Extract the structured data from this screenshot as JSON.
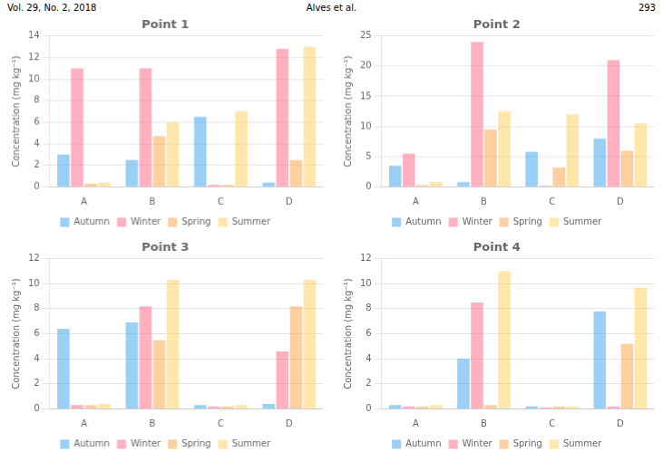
{
  "annotations": [
    "Vol. 29, No. 2, 2018",
    "Alves et al.",
    "293"
  ],
  "chart_data": [
    {
      "type": "bar",
      "title": "Point 1",
      "ylabel": "Concentration (mg kg⁻¹)",
      "categories": [
        "A",
        "B",
        "C",
        "D"
      ],
      "series": [
        {
          "name": "Autumn",
          "values": [
            3.0,
            2.5,
            6.5,
            0.4
          ]
        },
        {
          "name": "Winter",
          "values": [
            11.0,
            11.0,
            0.2,
            12.8
          ]
        },
        {
          "name": "Spring",
          "values": [
            0.3,
            4.7,
            0.2,
            2.5
          ]
        },
        {
          "name": "Summer",
          "values": [
            0.4,
            6.0,
            7.0,
            13.0
          ]
        }
      ],
      "ylim": [
        0,
        14
      ],
      "yticks": [
        0,
        2,
        4,
        6,
        8,
        10,
        12,
        14
      ],
      "grid": true,
      "legend": "bottom"
    },
    {
      "type": "bar",
      "title": "Point 2",
      "ylabel": "Concentration (mg kg⁻¹)",
      "categories": [
        "A",
        "B",
        "C",
        "D"
      ],
      "series": [
        {
          "name": "Autumn",
          "values": [
            3.5,
            0.8,
            5.8,
            8.0
          ]
        },
        {
          "name": "Winter",
          "values": [
            5.5,
            24.0,
            0.2,
            21.0
          ]
        },
        {
          "name": "Spring",
          "values": [
            0.3,
            9.5,
            3.2,
            6.0
          ]
        },
        {
          "name": "Summer",
          "values": [
            0.8,
            12.5,
            12.0,
            10.5
          ]
        }
      ],
      "ylim": [
        0,
        25
      ],
      "yticks": [
        0,
        5,
        10,
        15,
        20,
        25
      ],
      "grid": true,
      "legend": "bottom"
    },
    {
      "type": "bar",
      "title": "Point 3",
      "ylabel": "Concentration (mg kg⁻¹)",
      "categories": [
        "A",
        "B",
        "C",
        "D"
      ],
      "series": [
        {
          "name": "Autumn",
          "values": [
            6.4,
            6.9,
            0.3,
            0.4
          ]
        },
        {
          "name": "Winter",
          "values": [
            0.3,
            8.2,
            0.2,
            4.6
          ]
        },
        {
          "name": "Spring",
          "values": [
            0.3,
            5.5,
            0.2,
            8.2
          ]
        },
        {
          "name": "Summer",
          "values": [
            0.4,
            10.3,
            0.3,
            10.3
          ]
        }
      ],
      "ylim": [
        0,
        12
      ],
      "yticks": [
        0,
        2,
        4,
        6,
        8,
        10,
        12
      ],
      "grid": true,
      "legend": "bottom"
    },
    {
      "type": "bar",
      "title": "Point 4",
      "ylabel": "Concentration (mg kg⁻¹)",
      "categories": [
        "A",
        "B",
        "C",
        "D"
      ],
      "series": [
        {
          "name": "Autumn",
          "values": [
            0.3,
            4.0,
            0.2,
            7.8
          ]
        },
        {
          "name": "Winter",
          "values": [
            0.2,
            8.5,
            0.1,
            0.2
          ]
        },
        {
          "name": "Spring",
          "values": [
            0.2,
            0.3,
            0.2,
            5.2
          ]
        },
        {
          "name": "Summer",
          "values": [
            0.3,
            11.0,
            0.2,
            9.7
          ]
        }
      ],
      "ylim": [
        0,
        12
      ],
      "yticks": [
        0,
        2,
        4,
        6,
        8,
        10,
        12
      ],
      "grid": true,
      "legend": "bottom"
    }
  ]
}
